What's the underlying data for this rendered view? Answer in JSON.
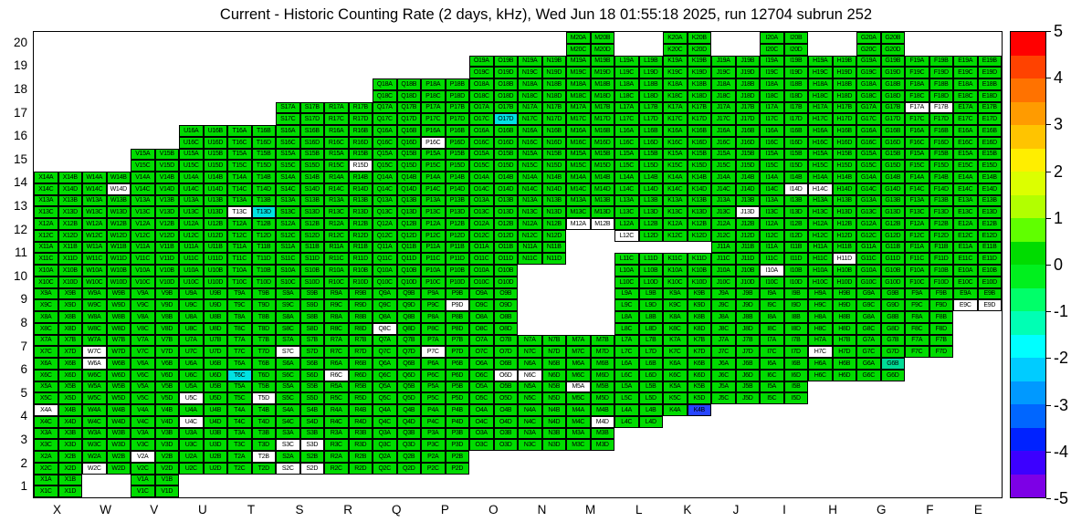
{
  "chart_data": {
    "type": "heatmap",
    "title": "Current - Historic Counting Rate (2 days, kHz), Wed Jun 18 01:55:18 2025, run 12704 subrun 252",
    "x_categories": [
      "X",
      "W",
      "V",
      "U",
      "T",
      "S",
      "R",
      "Q",
      "P",
      "O",
      "N",
      "M",
      "L",
      "K",
      "J",
      "I",
      "H",
      "G",
      "F",
      "E"
    ],
    "y_categories": [
      "20",
      "19",
      "18",
      "17",
      "16",
      "15",
      "14",
      "13",
      "12",
      "11",
      "10",
      "9",
      "8",
      "7",
      "6",
      "5",
      "4",
      "3",
      "2",
      "1"
    ],
    "legend_position": "right",
    "grid": true,
    "colorbar": {
      "min": -5,
      "max": 5,
      "ticks": [
        "5",
        "4",
        "3",
        "2",
        "1",
        "0",
        "-1",
        "-2",
        "-3",
        "-4",
        "-5"
      ],
      "band_colors": [
        "#ff0000",
        "#ff4200",
        "#ff7200",
        "#ff9b00",
        "#ffc400",
        "#ffee00",
        "#dcff00",
        "#b2ff00",
        "#60ff00",
        "#00dc00",
        "#00f01e",
        "#00ff69",
        "#00ffb4",
        "#00ffff",
        "#00ccff",
        "#0099ff",
        "#0066ff",
        "#0022ff",
        "#3c00ff",
        "#7d00e6"
      ]
    },
    "colors": {
      "g": "#00dc00",
      "w": "#ffffff",
      "c": "#00e2e2",
      "t": "#00dc96",
      "b": "#2846ff"
    },
    "class_values": {
      "g": 0.5,
      "w": null,
      "c": -1.5,
      "t": -1.0,
      "b": -3.5
    },
    "rows": [
      {
        "row": 20,
        "full": [
          "M",
          "K",
          "I",
          "G"
        ],
        "partial": []
      },
      {
        "row": 19,
        "full": [
          "O",
          "N",
          "M",
          "L",
          "K",
          "J",
          "I",
          "H",
          "G",
          "F",
          "E"
        ],
        "partial": []
      },
      {
        "row": 18,
        "full": [
          "Q",
          "P",
          "O",
          "N",
          "M",
          "L",
          "K",
          "J",
          "I",
          "H",
          "G",
          "F",
          "E"
        ],
        "partial": []
      },
      {
        "row": 17,
        "full": [
          "S",
          "R",
          "Q",
          "P",
          "O",
          "N",
          "M",
          "L",
          "K",
          "J",
          "I",
          "H",
          "G",
          "F",
          "E"
        ],
        "partial": []
      },
      {
        "row": 16,
        "full": [
          "U",
          "T",
          "S",
          "R",
          "Q",
          "P",
          "O",
          "N",
          "M",
          "L",
          "K",
          "J",
          "I",
          "H",
          "G",
          "F",
          "E"
        ],
        "partial": []
      },
      {
        "row": 15,
        "full": [
          "V",
          "U",
          "T",
          "S",
          "R",
          "Q",
          "P",
          "O",
          "N",
          "M",
          "L",
          "K",
          "J",
          "I",
          "H",
          "G",
          "F",
          "E"
        ],
        "partial": []
      },
      {
        "row": 14,
        "full": [
          "X",
          "W",
          "V",
          "U",
          "T",
          "S",
          "R",
          "Q",
          "P",
          "O",
          "N",
          "M",
          "L",
          "K",
          "J",
          "I",
          "H",
          "G",
          "F",
          "E"
        ],
        "partial": []
      },
      {
        "row": 13,
        "full": [
          "X",
          "W",
          "V",
          "U",
          "T",
          "S",
          "R",
          "Q",
          "P",
          "O",
          "N",
          "M",
          "L",
          "K",
          "J",
          "I",
          "H",
          "G",
          "F",
          "E"
        ],
        "partial": []
      },
      {
        "row": 12,
        "full": [
          "X",
          "W",
          "V",
          "U",
          "T",
          "S",
          "R",
          "Q",
          "P",
          "O",
          "N",
          "L",
          "K",
          "J",
          "I",
          "H",
          "G",
          "F",
          "E"
        ],
        "partial": [
          [
            "M",
            "AB"
          ]
        ]
      },
      {
        "row": 11,
        "full": [
          "X",
          "W",
          "V",
          "U",
          "T",
          "S",
          "R",
          "Q",
          "P",
          "O",
          "N",
          "J",
          "I",
          "H",
          "G",
          "F",
          "E"
        ],
        "partial": [
          [
            "L",
            "CD"
          ],
          [
            "K",
            "CD"
          ]
        ]
      },
      {
        "row": 10,
        "full": [
          "X",
          "W",
          "V",
          "U",
          "T",
          "S",
          "R",
          "Q",
          "P",
          "O",
          "L",
          "K",
          "J",
          "I",
          "H",
          "G",
          "F",
          "E"
        ],
        "partial": []
      },
      {
        "row": 9,
        "full": [
          "X",
          "W",
          "V",
          "U",
          "T",
          "S",
          "R",
          "Q",
          "P",
          "O",
          "L",
          "K",
          "J",
          "I",
          "H",
          "G",
          "F",
          "E"
        ],
        "partial": []
      },
      {
        "row": 8,
        "full": [
          "X",
          "W",
          "V",
          "U",
          "T",
          "S",
          "R",
          "Q",
          "P",
          "O",
          "L",
          "K",
          "J",
          "I",
          "H",
          "G",
          "F"
        ],
        "partial": []
      },
      {
        "row": 7,
        "full": [
          "X",
          "W",
          "V",
          "U",
          "T",
          "S",
          "R",
          "Q",
          "P",
          "O",
          "N",
          "M",
          "L",
          "K",
          "J",
          "I",
          "H",
          "G",
          "F"
        ],
        "partial": []
      },
      {
        "row": 6,
        "full": [
          "X",
          "W",
          "V",
          "U",
          "T",
          "S",
          "R",
          "Q",
          "P",
          "O",
          "N",
          "M",
          "L",
          "K",
          "J",
          "I",
          "H",
          "G"
        ],
        "partial": []
      },
      {
        "row": 5,
        "full": [
          "X",
          "W",
          "V",
          "U",
          "T",
          "S",
          "R",
          "Q",
          "P",
          "O",
          "N",
          "M",
          "L",
          "K",
          "J",
          "I"
        ],
        "partial": []
      },
      {
        "row": 4,
        "full": [
          "X",
          "W",
          "V",
          "U",
          "T",
          "S",
          "R",
          "Q",
          "P",
          "O",
          "N",
          "M",
          "L"
        ],
        "partial": [
          [
            "K",
            "AB"
          ]
        ]
      },
      {
        "row": 3,
        "full": [
          "X",
          "W",
          "V",
          "U",
          "T",
          "S",
          "R",
          "Q",
          "P",
          "O",
          "N",
          "M"
        ],
        "partial": []
      },
      {
        "row": 2,
        "full": [
          "X",
          "W",
          "V",
          "U",
          "T",
          "S",
          "R",
          "Q",
          "P"
        ],
        "partial": []
      },
      {
        "row": 1,
        "full": [
          "X",
          "V"
        ],
        "partial": []
      }
    ],
    "cell_overrides": {
      "O17D": "c",
      "F17A": "w",
      "F17B": "w",
      "P16C": "w",
      "R15D": "w",
      "W14D": "w",
      "I14D": "w",
      "H14C": "w",
      "T13C": "w",
      "T13D": "c",
      "J13D": "w",
      "M12A": "w",
      "M12B": "w",
      "L12C": "w",
      "H11D": "w",
      "I10A": "w",
      "P9D": "w",
      "E9C": "w",
      "E9D": "w",
      "Q8C": "w",
      "W7C": "w",
      "S7C": "w",
      "P7C": "w",
      "H7C": "w",
      "W6A": "w",
      "R6C": "w",
      "N6C": "w",
      "O6D": "w",
      "T6C": "c",
      "G6B": "t",
      "M5A": "w",
      "U5C": "w",
      "T5D": "w",
      "X4A": "w",
      "U4C": "w",
      "M4D": "w",
      "K4B": "b",
      "S3C": "w",
      "S3D": "w",
      "W2C": "w",
      "V2A": "w",
      "T2B": "w",
      "S2C": "w",
      "S2D": "w"
    }
  }
}
